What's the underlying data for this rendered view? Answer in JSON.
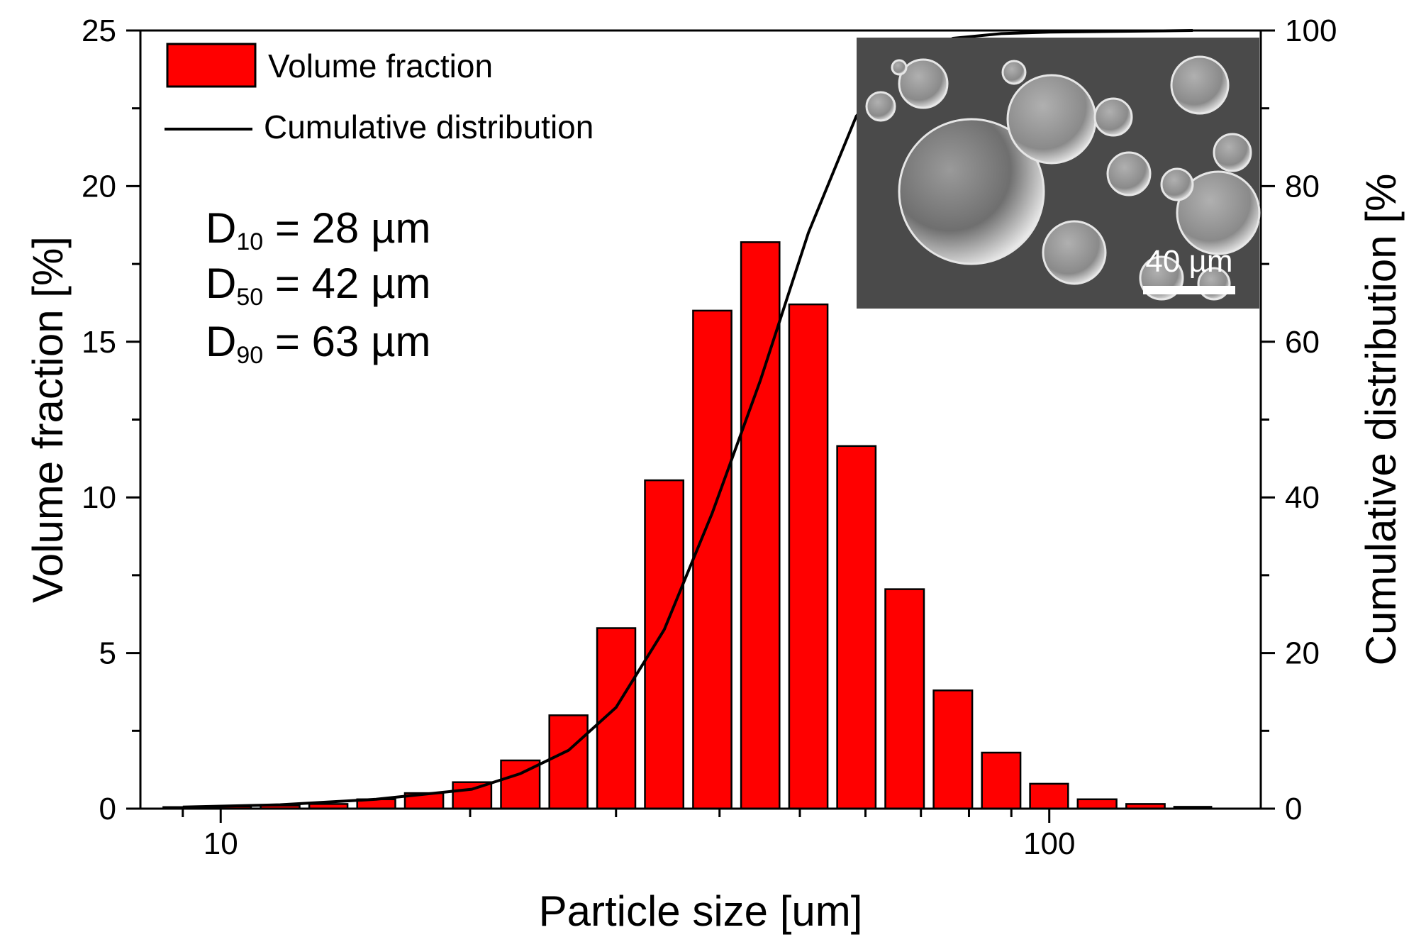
{
  "chart_data": {
    "type": "bar",
    "xlabel": "Particle size [um]",
    "ylabel": "Volume fraction [%]",
    "y2label": "Cumulative distribution [%",
    "xscale": "log",
    "xlim": [
      8,
      180
    ],
    "ylim": [
      0,
      25
    ],
    "y2lim": [
      0,
      100
    ],
    "yticks": [
      "0",
      "5",
      "10",
      "15",
      "20",
      "25"
    ],
    "y2ticks": [
      "0",
      "20",
      "40",
      "60",
      "80",
      "100"
    ],
    "xticks": [
      "10",
      "100"
    ],
    "x": [
      9.0,
      10.3,
      11.8,
      13.5,
      15.4,
      17.6,
      20.1,
      23.0,
      26.3,
      30.0,
      34.3,
      39.2,
      44.8,
      51.2,
      58.5,
      66.9,
      76.5,
      87.5,
      100,
      114,
      131,
      149
    ],
    "series": [
      {
        "name": "Volume fraction",
        "type": "bar",
        "axis": "left",
        "color": "#ff0000",
        "values": [
          0.05,
          0.07,
          0.1,
          0.15,
          0.3,
          0.5,
          0.85,
          1.55,
          3.0,
          5.8,
          10.55,
          16.0,
          18.2,
          16.2,
          11.65,
          7.05,
          3.8,
          1.8,
          0.8,
          0.3,
          0.15,
          0.06
        ]
      },
      {
        "name": "Cumulative distribution",
        "type": "line",
        "axis": "right",
        "color": "#000000",
        "points": [
          [
            9.0,
            0.2
          ],
          [
            11.8,
            0.5
          ],
          [
            15.4,
            1.2
          ],
          [
            20.1,
            2.5
          ],
          [
            23.0,
            4.5
          ],
          [
            26.3,
            7.5
          ],
          [
            30.0,
            13
          ],
          [
            34.3,
            23
          ],
          [
            39.2,
            38
          ],
          [
            44.8,
            55
          ],
          [
            51.2,
            74
          ],
          [
            58.5,
            89
          ],
          [
            66.9,
            96
          ],
          [
            76.5,
            99
          ],
          [
            87.5,
            99.6
          ],
          [
            100,
            99.8
          ],
          [
            149,
            100
          ]
        ]
      }
    ],
    "legend": "top-left",
    "annotations": [
      {
        "name": "d10",
        "label": "D",
        "sub": "10",
        "rest": " = 28 µm"
      },
      {
        "name": "d50",
        "label": "D",
        "sub": "50",
        "rest": " = 42 µm"
      },
      {
        "name": "d90",
        "label": "D",
        "sub": "90",
        "rest": " = 63 µm"
      }
    ],
    "inset": {
      "type": "SEM micrograph",
      "scale_bar_label": "40 µm"
    }
  }
}
